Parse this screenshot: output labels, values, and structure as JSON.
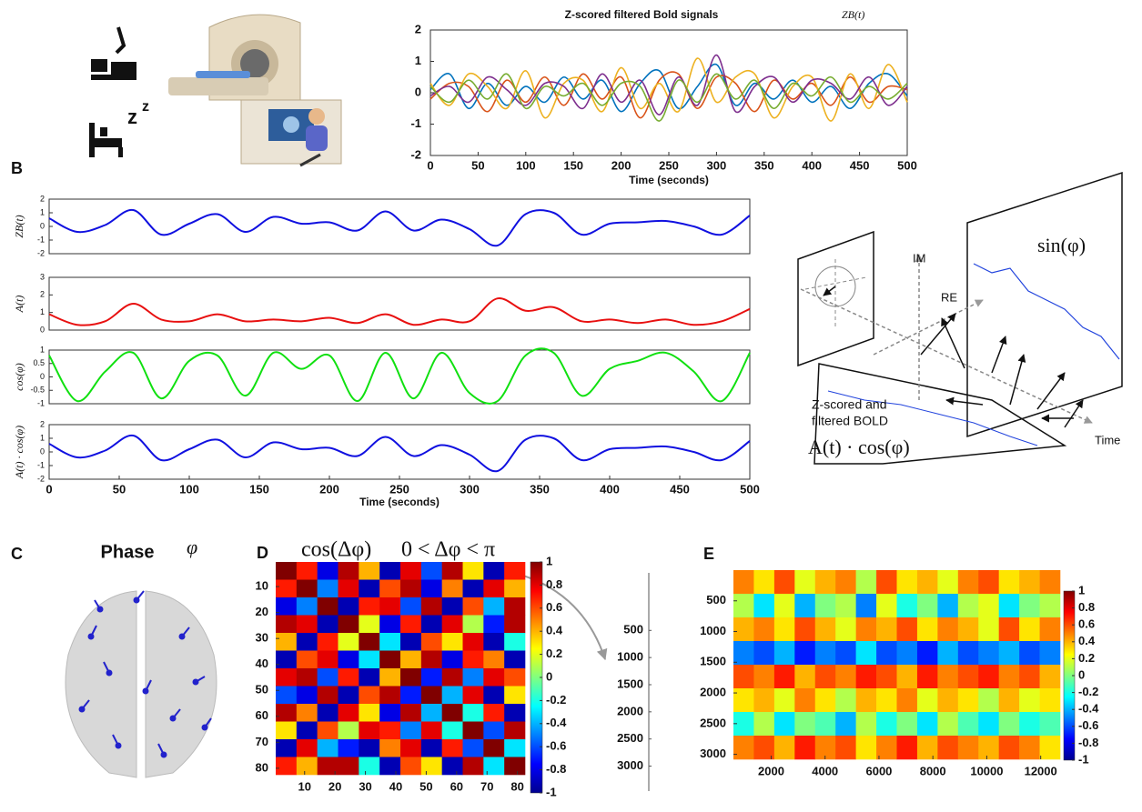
{
  "figure": {
    "panel_labels": [
      "B",
      "C",
      "D",
      "E"
    ],
    "phase_title": "Phase",
    "phase_symbol": "φ",
    "diagram": {
      "im": "IM",
      "re": "RE",
      "sin": "sin(φ)",
      "time": "Time",
      "bold_label_1": "Z-scored and",
      "bold_label_2": "filtered BOLD",
      "product": "A(t) · cos(φ)"
    },
    "zoom_axis": {
      "lim": [
        -560,
        3460
      ],
      "ticks": [
        500,
        1000,
        1500,
        2000,
        2500,
        3000
      ]
    }
  },
  "chart_data": [
    {
      "type": "line",
      "title": "Z-scored filtered Bold signals",
      "annotation": "ZB(t)",
      "x_label": "Time (seconds)",
      "x": [
        0,
        20,
        40,
        60,
        80,
        100,
        120,
        140,
        160,
        180,
        200,
        220,
        240,
        260,
        280,
        300,
        320,
        340,
        360,
        380,
        400,
        420,
        440,
        460,
        480,
        500
      ],
      "xlim": [
        0,
        500
      ],
      "xticks": [
        0,
        50,
        100,
        150,
        200,
        250,
        300,
        350,
        400,
        450,
        500
      ],
      "ylim": [
        -2,
        2
      ],
      "yticks": [
        -2,
        -1,
        0,
        1,
        2
      ],
      "series": [
        {
          "color": "#0072bd",
          "values": [
            0.1,
            0.6,
            -0.5,
            0.3,
            -0.4,
            0.2,
            -0.3,
            0.5,
            -0.2,
            0.4,
            -0.6,
            0.3,
            0.7,
            -0.5,
            0.2,
            0.9,
            -0.4,
            0.3,
            -0.2,
            0.4,
            -0.3,
            0.2,
            -0.5,
            0.3,
            0.6,
            -0.1
          ]
        },
        {
          "color": "#d95319",
          "values": [
            -0.2,
            0.3,
            0.2,
            -0.6,
            0.4,
            -0.3,
            0.5,
            -0.4,
            0.6,
            -0.2,
            0.5,
            -0.8,
            0.4,
            0.6,
            -0.5,
            0.5,
            0.3,
            -0.6,
            0.4,
            -0.2,
            0.3,
            -0.4,
            0.5,
            -0.3,
            0.2,
            0.1
          ]
        },
        {
          "color": "#edb120",
          "values": [
            0.3,
            -0.4,
            0.6,
            0.2,
            -0.5,
            0.7,
            -0.8,
            0.3,
            0.4,
            -0.6,
            0.8,
            -0.5,
            0.3,
            -0.6,
            1.1,
            -0.3,
            0.5,
            0.6,
            -0.8,
            0.2,
            0.5,
            -0.9,
            0.6,
            -0.5,
            0.9,
            -0.3
          ]
        },
        {
          "color": "#7e2f8e",
          "values": [
            -0.1,
            0.2,
            -0.3,
            0.5,
            0.1,
            -0.4,
            0.3,
            0.2,
            -0.5,
            0.6,
            -0.3,
            0.4,
            -0.7,
            0.5,
            -0.4,
            1.2,
            -0.6,
            0.2,
            0.5,
            -0.3,
            0.4,
            0.3,
            -0.2,
            0.5,
            -0.4,
            0.2
          ]
        },
        {
          "color": "#77ac30",
          "values": [
            0.2,
            -0.3,
            0.4,
            -0.2,
            0.6,
            -0.5,
            0.2,
            -0.1,
            0.3,
            -0.4,
            0.3,
            0.2,
            -0.9,
            0.4,
            -0.3,
            0.6,
            -0.2,
            0.4,
            -0.5,
            0.3,
            -0.1,
            0.5,
            -0.3,
            0.2,
            -0.2,
            0.3
          ]
        }
      ]
    },
    {
      "type": "line",
      "y_label": "ZB(t)",
      "x": [
        0,
        20,
        40,
        60,
        80,
        100,
        120,
        140,
        160,
        180,
        200,
        220,
        240,
        260,
        280,
        300,
        320,
        340,
        360,
        380,
        400,
        420,
        440,
        460,
        480,
        500
      ],
      "xlim": [
        0,
        500
      ],
      "ylim": [
        -2,
        2
      ],
      "yticks": [
        -2,
        -1,
        0,
        1,
        2
      ],
      "series": [
        {
          "color": "#1010e0",
          "values": [
            0.6,
            -0.4,
            0.1,
            1.2,
            -0.6,
            0.2,
            0.9,
            -0.4,
            0.7,
            0.2,
            0.3,
            -0.3,
            1.1,
            -0.3,
            0.5,
            -0.2,
            -1.4,
            0.9,
            1.0,
            -0.6,
            0.2,
            0.3,
            0.4,
            0.0,
            -0.6,
            0.8
          ]
        }
      ]
    },
    {
      "type": "line",
      "y_label": "A(t)",
      "x": [
        0,
        20,
        40,
        60,
        80,
        100,
        120,
        140,
        160,
        180,
        200,
        220,
        240,
        260,
        280,
        300,
        320,
        340,
        360,
        380,
        400,
        420,
        440,
        460,
        480,
        500
      ],
      "xlim": [
        0,
        500
      ],
      "ylim": [
        0,
        3
      ],
      "yticks": [
        0,
        1,
        2,
        3
      ],
      "series": [
        {
          "color": "#e81010",
          "values": [
            0.9,
            0.3,
            0.5,
            1.5,
            0.6,
            0.5,
            0.9,
            0.5,
            0.6,
            0.5,
            0.7,
            0.4,
            0.9,
            0.3,
            0.6,
            0.5,
            1.8,
            1.1,
            1.3,
            0.5,
            0.6,
            0.4,
            0.6,
            0.3,
            0.5,
            1.2
          ]
        }
      ]
    },
    {
      "type": "line",
      "y_label": "cos(φ)",
      "x": [
        0,
        20,
        40,
        60,
        80,
        100,
        120,
        140,
        160,
        180,
        200,
        220,
        240,
        260,
        280,
        300,
        320,
        340,
        360,
        380,
        400,
        420,
        440,
        460,
        480,
        500
      ],
      "xlim": [
        0,
        500
      ],
      "ylim": [
        -1,
        1
      ],
      "yticks": [
        -1,
        -0.5,
        0,
        0.5,
        1
      ],
      "series": [
        {
          "color": "#10e010",
          "values": [
            0.8,
            -0.9,
            0.2,
            0.9,
            -0.8,
            0.6,
            0.8,
            -0.7,
            0.9,
            0.3,
            0.8,
            -0.9,
            0.9,
            -0.8,
            0.9,
            -0.6,
            -0.9,
            0.8,
            0.9,
            -0.7,
            0.3,
            0.6,
            0.9,
            0.2,
            -0.9,
            0.9
          ]
        }
      ]
    },
    {
      "type": "line",
      "y_label": "A(t) · cos(φ)",
      "x_label": "Time (seconds)",
      "x": [
        0,
        20,
        40,
        60,
        80,
        100,
        120,
        140,
        160,
        180,
        200,
        220,
        240,
        260,
        280,
        300,
        320,
        340,
        360,
        380,
        400,
        420,
        440,
        460,
        480,
        500
      ],
      "xlim": [
        0,
        500
      ],
      "xticks": [
        0,
        50,
        100,
        150,
        200,
        250,
        300,
        350,
        400,
        450,
        500
      ],
      "ylim": [
        -2,
        2
      ],
      "yticks": [
        -2,
        -1,
        0,
        1,
        2
      ],
      "series": [
        {
          "color": "#1010e0",
          "values": [
            0.6,
            -0.4,
            0.1,
            1.2,
            -0.6,
            0.2,
            0.9,
            -0.4,
            0.7,
            0.2,
            0.3,
            -0.3,
            1.1,
            -0.3,
            0.5,
            -0.2,
            -1.4,
            0.9,
            1.0,
            -0.6,
            0.2,
            0.3,
            0.4,
            0.0,
            -0.6,
            0.8
          ]
        }
      ]
    },
    {
      "type": "heatmap",
      "title": "cos(Δφ)",
      "subtitle": "0 < Δφ < π",
      "xlim": [
        0.5,
        82.5
      ],
      "ylim": [
        0.5,
        82.5
      ],
      "y_reversed": true,
      "xticks": [
        10,
        20,
        30,
        40,
        50,
        60,
        70,
        80
      ],
      "yticks": [
        10,
        20,
        30,
        40,
        50,
        60,
        70,
        80
      ],
      "clim": [
        -1,
        1
      ],
      "cticks": [
        1,
        0.8,
        0.6,
        0.4,
        0.2,
        0,
        -0.2,
        -0.4,
        -0.6,
        -0.8,
        -1
      ],
      "z": [
        [
          1,
          0.7,
          -0.8,
          0.9,
          0.4,
          -0.9,
          0.8,
          -0.6,
          0.9,
          0.3,
          -0.9,
          0.7
        ],
        [
          0.7,
          1,
          -0.5,
          0.8,
          -0.9,
          0.6,
          0.9,
          -0.8,
          0.5,
          -0.9,
          0.8,
          0.4
        ],
        [
          -0.8,
          -0.5,
          1,
          -0.9,
          0.7,
          0.8,
          -0.6,
          0.9,
          -0.9,
          0.6,
          -0.4,
          0.9
        ],
        [
          0.9,
          0.8,
          -0.9,
          1,
          0.2,
          -0.8,
          0.7,
          -0.9,
          0.8,
          0.1,
          -0.7,
          0.9
        ],
        [
          0.4,
          -0.9,
          0.7,
          0.2,
          1,
          -0.3,
          -0.9,
          0.6,
          0.3,
          0.8,
          -0.9,
          -0.2
        ],
        [
          -0.9,
          0.6,
          0.8,
          -0.8,
          -0.3,
          1,
          0.4,
          0.9,
          -0.8,
          0.7,
          0.5,
          -0.9
        ],
        [
          0.8,
          0.9,
          -0.6,
          0.7,
          -0.9,
          0.4,
          1,
          -0.7,
          0.9,
          -0.5,
          0.8,
          0.6
        ],
        [
          -0.6,
          -0.8,
          0.9,
          -0.9,
          0.6,
          0.9,
          -0.7,
          1,
          -0.4,
          0.8,
          -0.9,
          0.3
        ],
        [
          0.9,
          0.5,
          -0.9,
          0.8,
          0.3,
          -0.8,
          0.9,
          -0.4,
          1,
          -0.2,
          0.7,
          -0.9
        ],
        [
          0.3,
          -0.9,
          0.6,
          0.1,
          0.8,
          0.7,
          -0.5,
          0.8,
          -0.2,
          1,
          -0.6,
          0.9
        ],
        [
          -0.9,
          0.8,
          -0.4,
          -0.7,
          -0.9,
          0.5,
          0.8,
          -0.9,
          0.7,
          -0.6,
          1,
          -0.3
        ],
        [
          0.7,
          0.4,
          0.9,
          0.9,
          -0.2,
          -0.9,
          0.6,
          0.3,
          -0.9,
          0.9,
          -0.3,
          1
        ]
      ]
    },
    {
      "type": "heatmap",
      "xlim": [
        600,
        12720
      ],
      "ylim": [
        0,
        3080
      ],
      "y_reversed": true,
      "xticks": [
        2000,
        4000,
        6000,
        8000,
        10000,
        12000
      ],
      "yticks": [
        500,
        1000,
        1500,
        2000,
        2500,
        3000
      ],
      "clim": [
        -1,
        1
      ],
      "cticks": [
        1,
        0.8,
        0.6,
        0.4,
        0.2,
        0,
        -0.2,
        -0.4,
        -0.6,
        -0.8,
        -1
      ],
      "z": [
        [
          0.5,
          0.3,
          0.6,
          0.2,
          0.4,
          0.5,
          0.1,
          0.6,
          0.3,
          0.4,
          0.2,
          0.5,
          0.6,
          0.3,
          0.4,
          0.5
        ],
        [
          0.1,
          -0.3,
          0.2,
          -0.4,
          0.0,
          0.1,
          -0.5,
          0.2,
          -0.2,
          0.0,
          -0.4,
          0.1,
          0.2,
          -0.3,
          0.0,
          0.1
        ],
        [
          0.4,
          0.5,
          0.3,
          0.6,
          0.4,
          0.2,
          0.5,
          0.4,
          0.6,
          0.3,
          0.5,
          0.4,
          0.2,
          0.6,
          0.3,
          0.5
        ],
        [
          -0.5,
          -0.6,
          -0.4,
          -0.7,
          -0.5,
          -0.6,
          -0.3,
          -0.6,
          -0.5,
          -0.7,
          -0.4,
          -0.6,
          -0.5,
          -0.4,
          -0.6,
          -0.5
        ],
        [
          0.6,
          0.5,
          0.7,
          0.4,
          0.6,
          0.5,
          0.7,
          0.6,
          0.4,
          0.7,
          0.5,
          0.6,
          0.7,
          0.5,
          0.6,
          0.4
        ],
        [
          0.3,
          0.4,
          0.2,
          0.5,
          0.3,
          0.1,
          0.4,
          0.3,
          0.5,
          0.2,
          0.4,
          0.3,
          0.1,
          0.4,
          0.2,
          0.3
        ],
        [
          -0.2,
          0.1,
          -0.3,
          0.0,
          -0.1,
          -0.4,
          0.1,
          -0.2,
          0.0,
          -0.3,
          0.1,
          -0.1,
          -0.3,
          0.0,
          -0.2,
          -0.1
        ],
        [
          0.5,
          0.6,
          0.4,
          0.7,
          0.5,
          0.6,
          0.3,
          0.5,
          0.7,
          0.4,
          0.6,
          0.5,
          0.4,
          0.6,
          0.5,
          0.3
        ]
      ]
    }
  ]
}
